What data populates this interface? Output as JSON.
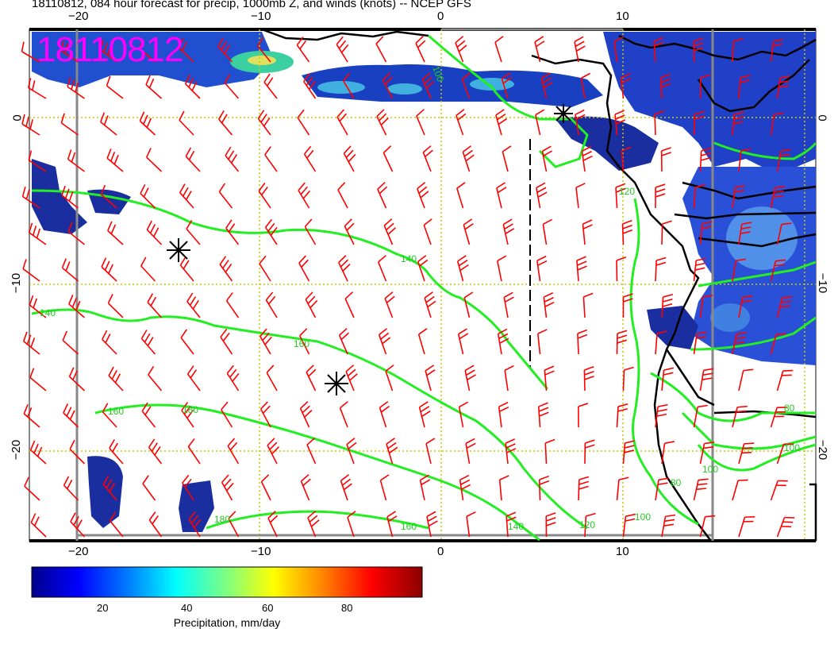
{
  "title": "18110812, 084 hour forecast for precip, 1000mb Z, and winds (knots) -- NCEP GFS",
  "stamp": "18110812",
  "x_ticks_top": [
    "−20",
    "−10",
    "0",
    "10"
  ],
  "x_ticks_bottom": [
    "−20",
    "−10",
    "0",
    "10"
  ],
  "y_ticks_left": [
    "0",
    "−10",
    "−20"
  ],
  "y_ticks_right": [
    "0",
    "−10",
    "−20"
  ],
  "contour_labels": [
    "100",
    "120",
    "140",
    "140",
    "160",
    "160",
    "180",
    "180",
    "160",
    "140",
    "120",
    "100",
    "80",
    "100",
    "80",
    "100"
  ],
  "colorbar": {
    "title": "Precipitation, mm/day",
    "ticks": [
      "20",
      "40",
      "60",
      "80"
    ],
    "colors": [
      "#00008b",
      "#0000ff",
      "#0080ff",
      "#00ffff",
      "#80ff80",
      "#ffff00",
      "#ff8000",
      "#ff0000",
      "#8b0000"
    ]
  },
  "legend_colors": {
    "wind": "#ff0000",
    "contour": "#00ff00",
    "coast": "#000000",
    "grid": "#c8c800"
  }
}
